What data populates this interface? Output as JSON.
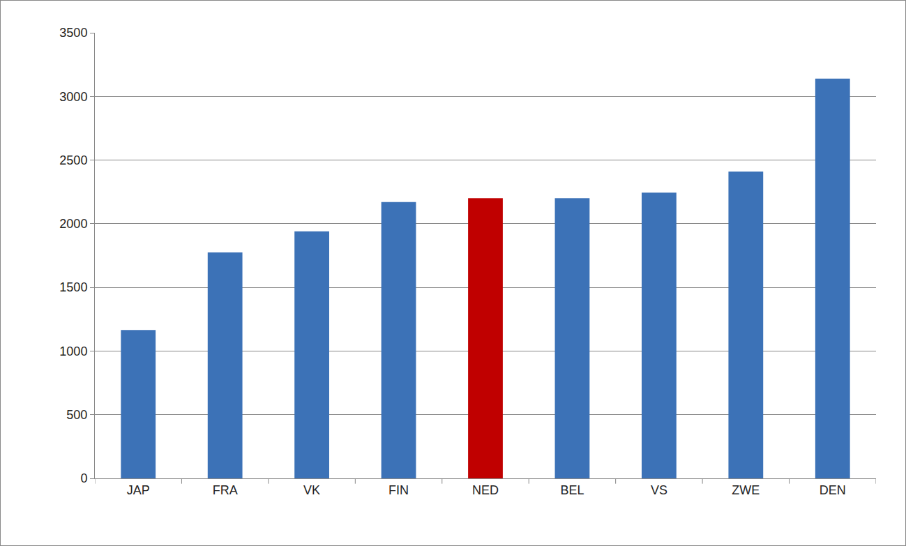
{
  "chart_data": {
    "type": "bar",
    "categories": [
      "JAP",
      "FRA",
      "VK",
      "FIN",
      "NED",
      "BEL",
      "VS",
      "ZWE",
      "DEN"
    ],
    "values": [
      1165,
      1775,
      1940,
      2170,
      2200,
      2200,
      2245,
      2410,
      3140
    ],
    "colors": [
      "#3c72b7",
      "#3c72b7",
      "#3c72b7",
      "#3c72b7",
      "#c00000",
      "#3c72b7",
      "#3c72b7",
      "#3c72b7",
      "#3c72b7"
    ],
    "ylim": [
      0,
      3500
    ],
    "yticks": [
      0,
      500,
      1000,
      1500,
      2000,
      2500,
      3000,
      3500
    ],
    "grid": true
  }
}
